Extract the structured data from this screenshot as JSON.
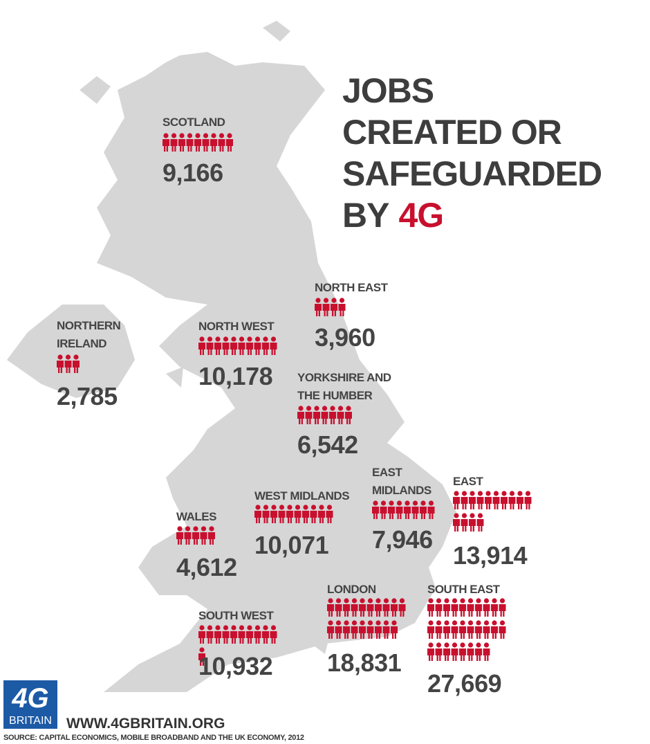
{
  "title": {
    "lines": [
      "JOBS",
      "CREATED OR",
      "SAFEGUARDED",
      "BY"
    ],
    "highlight": "4G"
  },
  "regions": [
    {
      "name": [
        "SCOTLAND"
      ],
      "value": 9166,
      "label": "9,166"
    },
    {
      "name": [
        "NORTH EAST"
      ],
      "value": 3960,
      "label": "3,960"
    },
    {
      "name": [
        "NORTHERN",
        "IRELAND"
      ],
      "value": 2785,
      "label": "2,785"
    },
    {
      "name": [
        "NORTH WEST"
      ],
      "value": 10178,
      "label": "10,178"
    },
    {
      "name": [
        "YORKSHIRE AND",
        "THE HUMBER"
      ],
      "value": 6542,
      "label": "6,542"
    },
    {
      "name": [
        "WALES"
      ],
      "value": 4612,
      "label": "4,612"
    },
    {
      "name": [
        "WEST MIDLANDS"
      ],
      "value": 10071,
      "label": "10,071"
    },
    {
      "name": [
        "EAST",
        "MIDLANDS"
      ],
      "value": 7946,
      "label": "7,946"
    },
    {
      "name": [
        "EAST"
      ],
      "value": 13914,
      "label": "13,914"
    },
    {
      "name": [
        "LONDON"
      ],
      "value": 18831,
      "label": "18,831"
    },
    {
      "name": [
        "SOUTH EAST"
      ],
      "value": 27669,
      "label": "27,669"
    },
    {
      "name": [
        "SOUTH WEST"
      ],
      "value": 10932,
      "label": "10,932"
    }
  ],
  "logo": {
    "top": "4G",
    "bottom": "BRITAIN"
  },
  "url": "WWW.4GBRITAIN.ORG",
  "source": "SOURCE: CAPITAL ECONOMICS, MOBILE BROADBAND AND THE UK ECONOMY, 2012"
}
